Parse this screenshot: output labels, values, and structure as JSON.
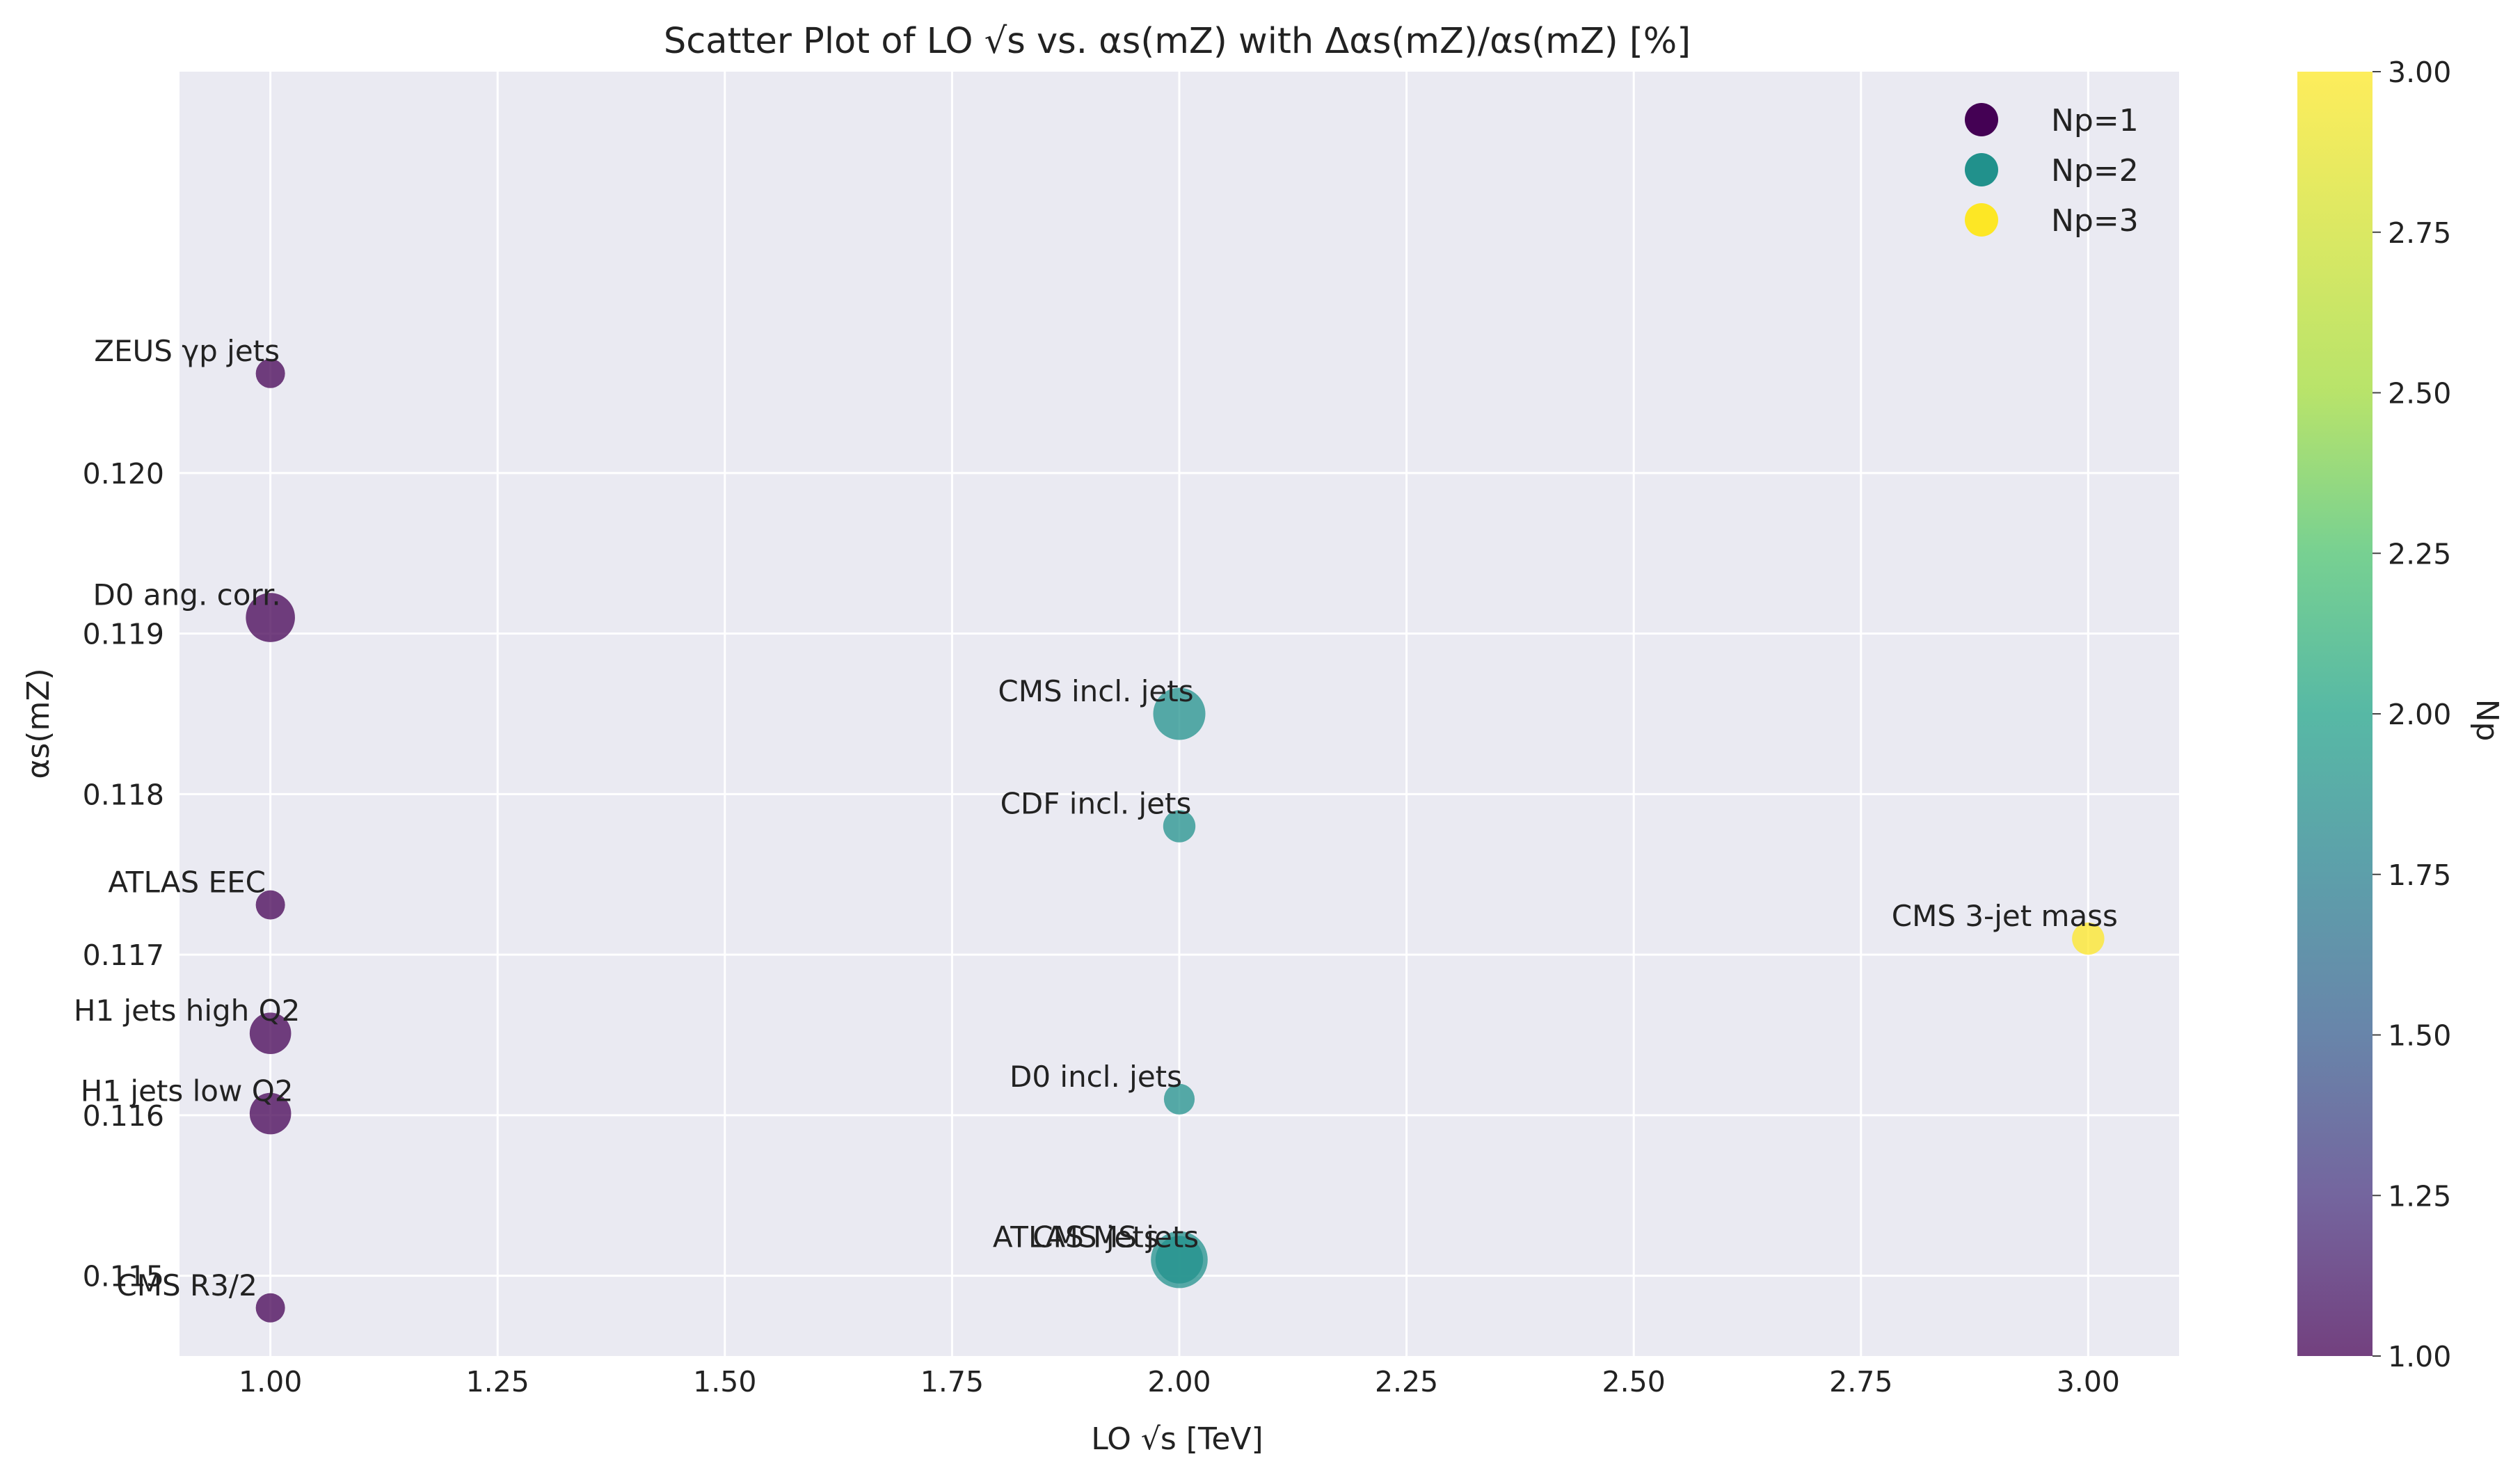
{
  "chart_data": {
    "type": "scatter",
    "title": "Scatter Plot of LO √s vs. αs(mZ) with Δαs(mZ)/αs(mZ) [%]",
    "xlabel": "LO √s [TeV]",
    "ylabel": "αs(mZ)",
    "xlim": [
      0.9,
      3.1
    ],
    "ylim": [
      0.1145,
      0.1225
    ],
    "x_ticks": [
      "1.00",
      "1.25",
      "1.50",
      "1.75",
      "2.00",
      "2.25",
      "2.50",
      "2.75",
      "3.00"
    ],
    "y_ticks": [
      "0.115",
      "0.116",
      "0.117",
      "0.118",
      "0.119",
      "0.120"
    ],
    "grid": true,
    "legend": {
      "position": "top-right",
      "entries": [
        {
          "label": "Np=1",
          "color": "#440154"
        },
        {
          "label": "Np=2",
          "color": "#21918c"
        },
        {
          "label": "Np=3",
          "color": "#fde725"
        }
      ]
    },
    "colorbar": {
      "label": "Np",
      "range": [
        1.0,
        3.0
      ],
      "ticks": [
        "1.00",
        "1.25",
        "1.50",
        "1.75",
        "2.00",
        "2.25",
        "2.50",
        "2.75",
        "3.00"
      ],
      "colormap": "viridis"
    },
    "points": [
      {
        "label": "ZEUS γp jets",
        "x": 1.0,
        "y": 0.12062,
        "np": 1,
        "size": 1.0
      },
      {
        "label": "D0 ang. corr.",
        "x": 1.0,
        "y": 0.1191,
        "np": 1,
        "size": 2.3
      },
      {
        "label": "ATLAS EEC",
        "x": 1.0,
        "y": 0.11731,
        "np": 1,
        "size": 1.0
      },
      {
        "label": "H1 jets high Q2",
        "x": 1.0,
        "y": 0.11651,
        "np": 1,
        "size": 1.8
      },
      {
        "label": "H1 jets low Q2",
        "x": 1.0,
        "y": 0.11601,
        "np": 1,
        "size": 1.8
      },
      {
        "label": "CMS R3/2",
        "x": 1.0,
        "y": 0.1148,
        "np": 1,
        "size": 1.0
      },
      {
        "label": "CMS incl. jets",
        "x": 2.0,
        "y": 0.1185,
        "np": 2,
        "size": 2.5
      },
      {
        "label": "CDF incl. jets",
        "x": 2.0,
        "y": 0.1178,
        "np": 2,
        "size": 1.2
      },
      {
        "label": "D0 incl. jets",
        "x": 2.0,
        "y": 0.1161,
        "np": 2,
        "size": 1.1
      },
      {
        "label": "ATLAS MS jets",
        "x": 2.0,
        "y": 0.1151,
        "np": 2,
        "size": 2.8
      },
      {
        "label": "CMS jets",
        "x": 2.0,
        "y": 0.1151,
        "np": 2,
        "size": 2.2
      },
      {
        "label": "CMS 3-jet mass",
        "x": 3.0,
        "y": 0.1171,
        "np": 3,
        "size": 1.2
      }
    ]
  }
}
